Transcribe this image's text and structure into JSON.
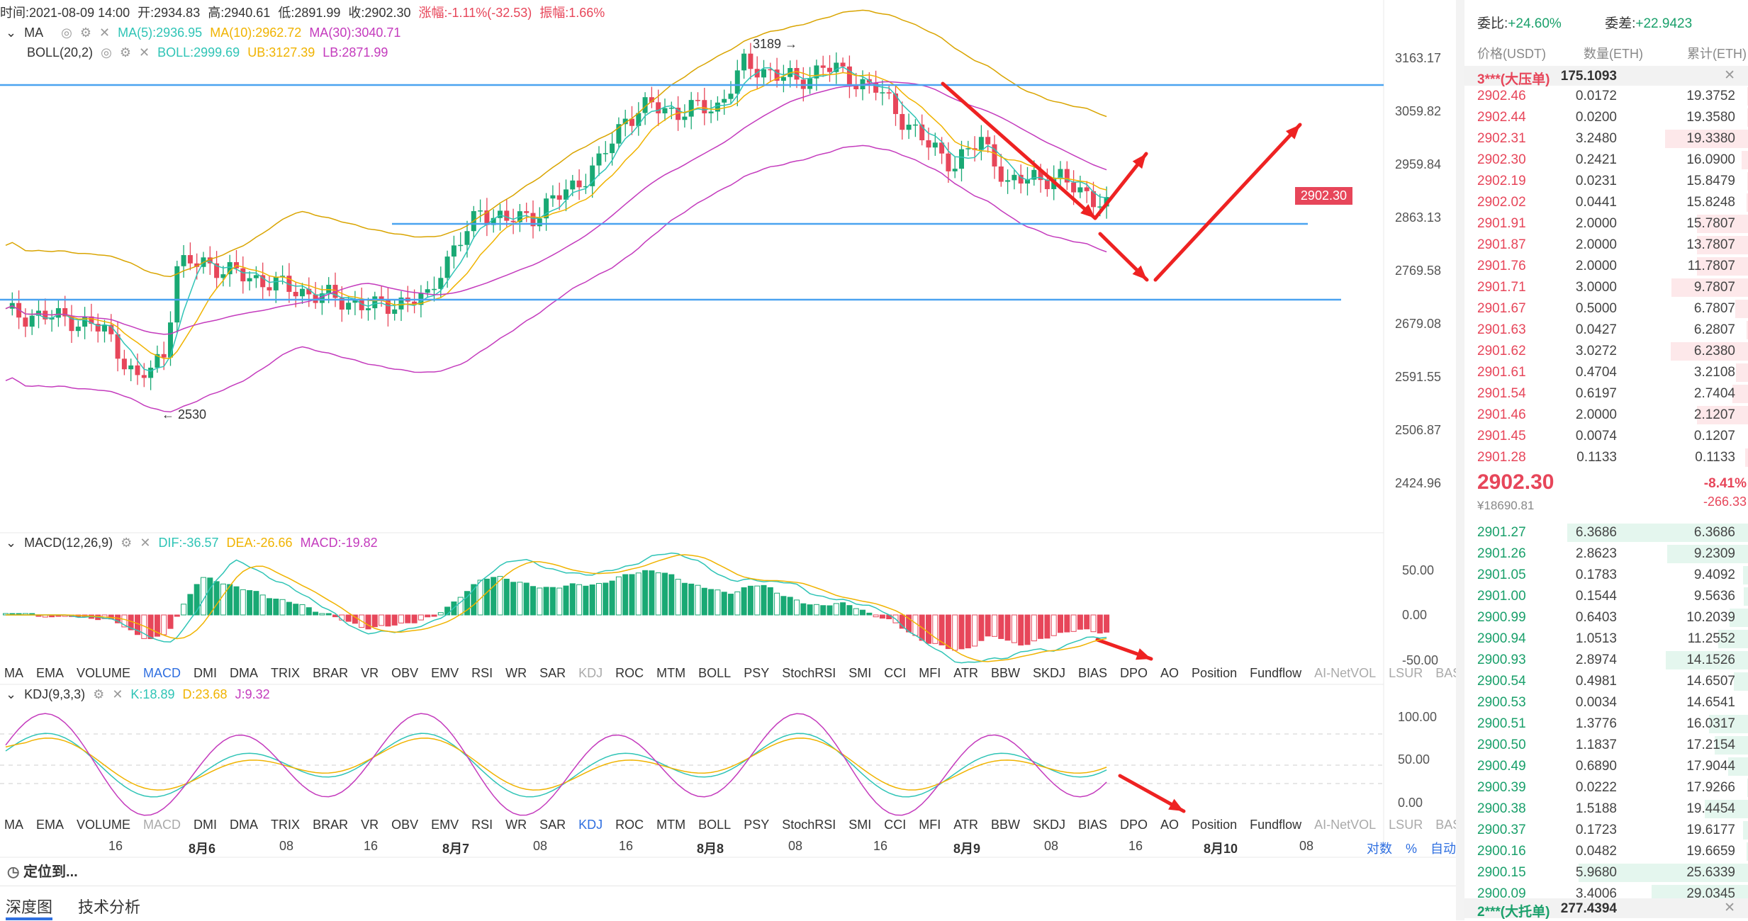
{
  "header": {
    "time": "时间:2021-08-09 14:00",
    "open": "开:2934.83",
    "high": "高:2940.61",
    "low": "低:2891.99",
    "close": "收:2902.30",
    "change": "涨幅:-1.11%(-32.53)",
    "amplitude": "振幅:1.66%",
    "ma_label": "MA",
    "ma5": "MA(5):2936.95",
    "ma10": "MA(10):2962.72",
    "ma30": "MA(30):3040.71",
    "boll_label": "BOLL(20,2)",
    "boll": "BOLL:2999.69",
    "ub": "UB:3127.39",
    "lb": "LB:2871.99"
  },
  "colors": {
    "up": "#19a974",
    "down": "#e7465a",
    "ma5": "#2fc4b6",
    "ma10": "#f0b300",
    "ma30": "#c43bbd",
    "boll": "#d9a400",
    "hline": "#4aa3f0",
    "arrow": "#ee2222"
  },
  "main_axis": [
    "3163.17",
    "3059.82",
    "2959.84",
    "2863.13",
    "2769.58",
    "2679.08",
    "2591.55",
    "2506.87",
    "2424.96"
  ],
  "price_badge": "2902.30",
  "annotations": {
    "high": "3189 →",
    "low": "← 2530"
  },
  "macd_header": {
    "label": "MACD(12,26,9)",
    "dif": "DIF:-36.57",
    "dea": "DEA:-26.66",
    "macd": "MACD:-19.82"
  },
  "macd_axis": [
    "50.00",
    "0.00",
    "-50.00"
  ],
  "kdj_header": {
    "label": "KDJ(9,3,3)",
    "k": "K:18.89",
    "d": "D:23.68",
    "j": "J:9.32"
  },
  "kdj_axis": [
    "100.00",
    "50.00",
    "0.00"
  ],
  "indicators": [
    "MA",
    "EMA",
    "VOLUME",
    "MACD",
    "DMI",
    "DMA",
    "TRIX",
    "BRAR",
    "VR",
    "OBV",
    "EMV",
    "RSI",
    "WR",
    "SAR",
    "KDJ",
    "ROC",
    "MTM",
    "BOLL",
    "PSY",
    "StochRSI",
    "SMI",
    "CCI",
    "MFI",
    "ATR",
    "BBW",
    "SKDJ",
    "BIAS",
    "DPO",
    "AO",
    "Position",
    "Fundflow",
    "AI-NetVOL",
    "LSUR",
    "BASIS"
  ],
  "x_labels": [
    "16",
    "8月6",
    "08",
    "16",
    "8月7",
    "08",
    "16",
    "8月8",
    "08",
    "16",
    "8月9",
    "08",
    "16",
    "8月10",
    "08"
  ],
  "axis_controls": {
    "log": "对数",
    "percent": "%",
    "auto": "自动"
  },
  "locate": "定位到...",
  "bottom_tabs": [
    "深度图",
    "技术分析"
  ],
  "orderbook": {
    "commission_ratio": "委比:",
    "commission_ratio_value": "+24.60%",
    "commission_diff": "委差:",
    "commission_diff_value": "+22.9423",
    "col_price": "价格(USDT)",
    "col_qty": "数量(ETH)",
    "col_cum": "累计(ETH)",
    "ask_wall_label": "3***(大压单)",
    "ask_wall_value": "175.1093",
    "asks": [
      [
        "2902.46",
        "0.0172",
        "19.3752"
      ],
      [
        "2902.44",
        "0.0200",
        "19.3580"
      ],
      [
        "2902.31",
        "3.2480",
        "19.3380"
      ],
      [
        "2902.30",
        "0.2421",
        "16.0900"
      ],
      [
        "2902.19",
        "0.0231",
        "15.8479"
      ],
      [
        "2902.02",
        "0.0441",
        "15.8248"
      ],
      [
        "2901.91",
        "2.0000",
        "15.7807"
      ],
      [
        "2901.87",
        "2.0000",
        "13.7807"
      ],
      [
        "2901.76",
        "2.0000",
        "11.7807"
      ],
      [
        "2901.71",
        "3.0000",
        "9.7807"
      ],
      [
        "2901.67",
        "0.5000",
        "6.7807"
      ],
      [
        "2901.63",
        "0.0427",
        "6.2807"
      ],
      [
        "2901.62",
        "3.0272",
        "6.2380"
      ],
      [
        "2901.61",
        "0.4704",
        "3.2108"
      ],
      [
        "2901.54",
        "0.6197",
        "2.7404"
      ],
      [
        "2901.46",
        "2.0000",
        "2.1207"
      ],
      [
        "2901.45",
        "0.0074",
        "0.1207"
      ],
      [
        "2901.28",
        "0.1133",
        "0.1133"
      ]
    ],
    "last_price": "2902.30",
    "last_cny": "¥18690.81",
    "pct_change": "-8.41%",
    "abs_change": "-266.33",
    "bids": [
      [
        "2901.27",
        "6.3686",
        "6.3686"
      ],
      [
        "2901.26",
        "2.8623",
        "9.2309"
      ],
      [
        "2901.05",
        "0.1783",
        "9.4092"
      ],
      [
        "2901.00",
        "0.1544",
        "9.5636"
      ],
      [
        "2900.99",
        "0.6403",
        "10.2039"
      ],
      [
        "2900.94",
        "1.0513",
        "11.2552"
      ],
      [
        "2900.93",
        "2.8974",
        "14.1526"
      ],
      [
        "2900.54",
        "0.4981",
        "14.6507"
      ],
      [
        "2900.53",
        "0.0034",
        "14.6541"
      ],
      [
        "2900.51",
        "1.3776",
        "16.0317"
      ],
      [
        "2900.50",
        "1.1837",
        "17.2154"
      ],
      [
        "2900.49",
        "0.6890",
        "17.9044"
      ],
      [
        "2900.39",
        "0.0222",
        "17.9266"
      ],
      [
        "2900.38",
        "1.5188",
        "19.4454"
      ],
      [
        "2900.37",
        "0.1723",
        "19.6177"
      ],
      [
        "2900.16",
        "0.0482",
        "19.6659"
      ],
      [
        "2900.15",
        "5.9680",
        "25.6339"
      ],
      [
        "2900.09",
        "3.4006",
        "29.0345"
      ]
    ],
    "bid_wall_label": "2***(大托单)",
    "bid_wall_value": "277.4394"
  }
}
